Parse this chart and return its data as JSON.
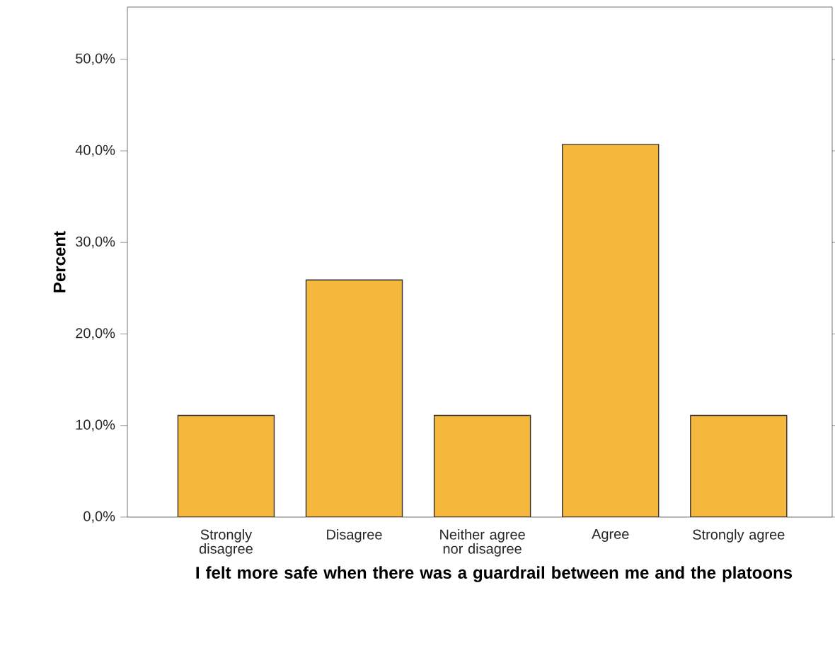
{
  "chart_data": {
    "type": "bar",
    "xlabel": "I felt more safe when there was a guardrail between me and the platoons",
    "ylabel": "Percent",
    "categories": [
      "Strongly disagree",
      "Disagree",
      "Neither agree nor disagree",
      "Agree",
      "Strongly agree"
    ],
    "values": [
      11.1,
      25.9,
      11.1,
      40.7,
      11.1
    ],
    "color": "#f5b83d",
    "ylim": [
      0,
      55.7
    ],
    "yticks": [
      {
        "value": 0,
        "label": "0,0%"
      },
      {
        "value": 10,
        "label": "10,0%"
      },
      {
        "value": 20,
        "label": "20,0%"
      },
      {
        "value": 30,
        "label": "30,0%"
      },
      {
        "value": 40,
        "label": "40,0%"
      },
      {
        "value": 50,
        "label": "50,0%"
      }
    ],
    "grid": false
  }
}
